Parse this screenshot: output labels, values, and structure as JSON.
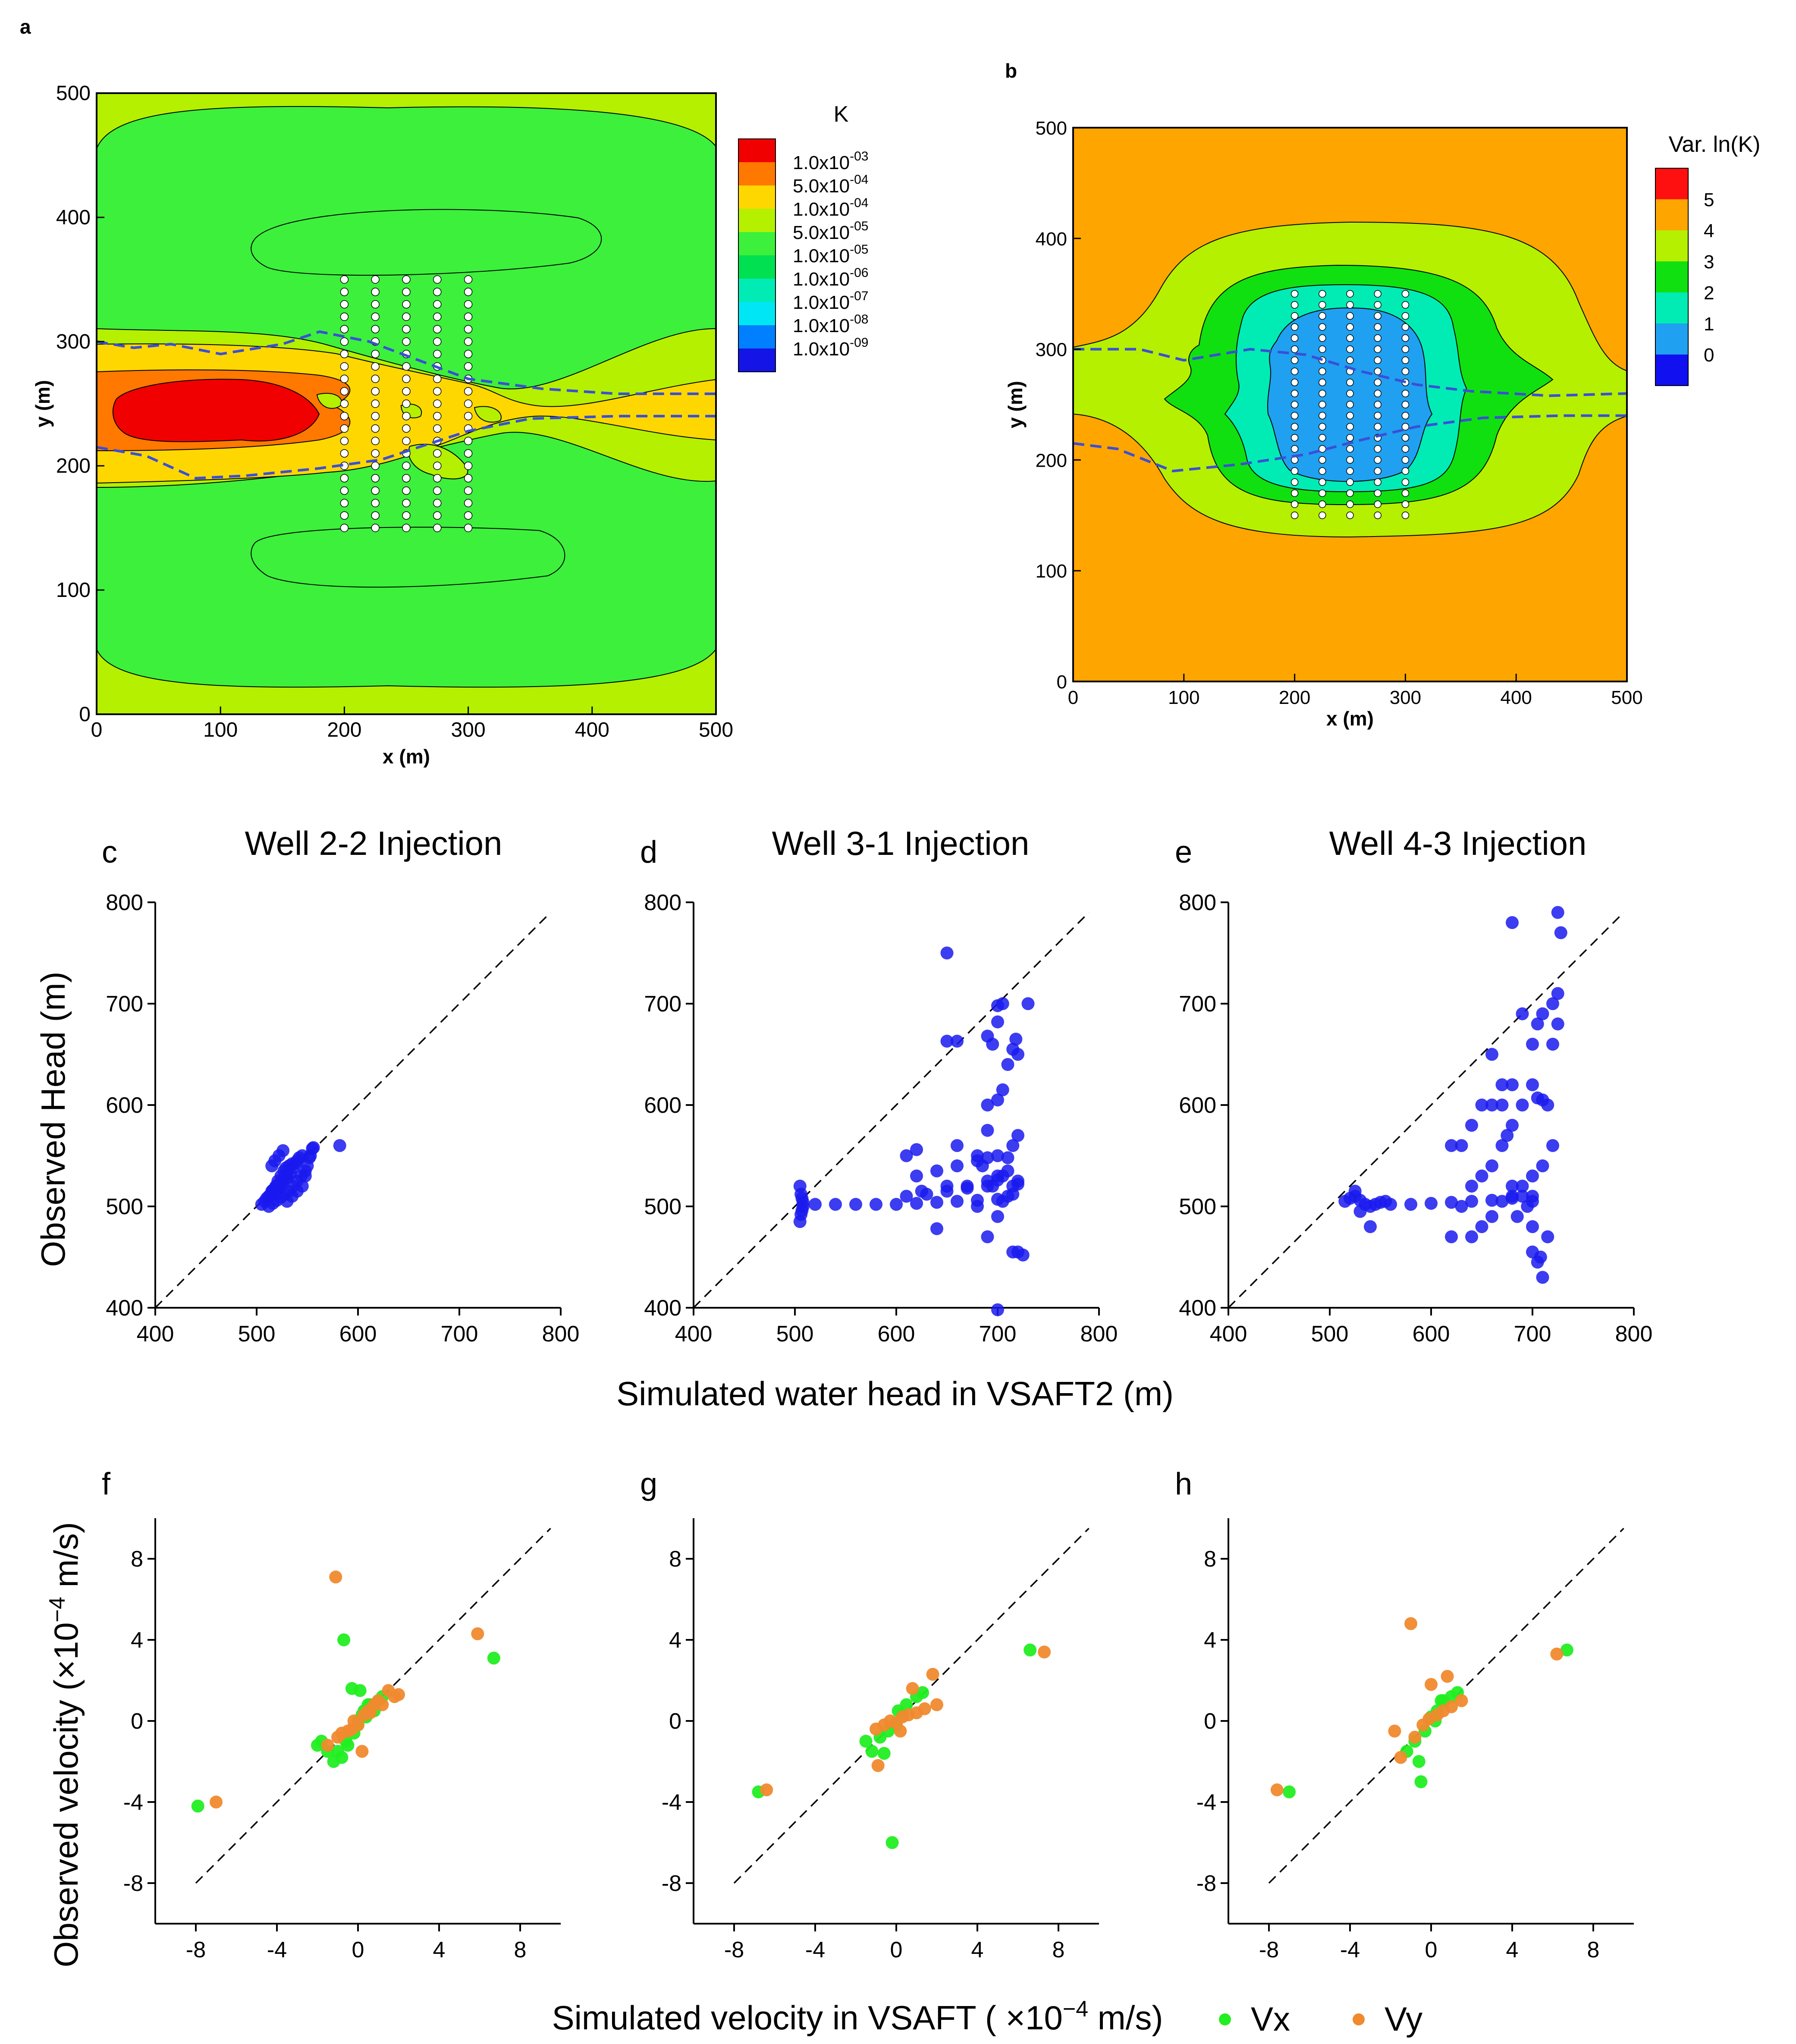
{
  "panel_letters": {
    "a": "a",
    "b": "b",
    "c": "c",
    "d": "d",
    "e": "e",
    "f": "f",
    "g": "g",
    "h": "h"
  },
  "panel_a": {
    "xlabel": "x (m)",
    "ylabel": "y (m)",
    "xticks": [
      "0",
      "100",
      "200",
      "300",
      "400",
      "500"
    ],
    "yticks": [
      "0",
      "100",
      "200",
      "300",
      "400",
      "500"
    ],
    "legend_title": "K",
    "legend_mantissas": [
      "1.0x10",
      "5.0x10",
      "1.0x10",
      "5.0x10",
      "1.0x10",
      "1.0x10",
      "1.0x10",
      "1.0x10",
      "1.0x10"
    ],
    "legend_exponents": [
      "-03",
      "-04",
      "-04",
      "-05",
      "-05",
      "-06",
      "-07",
      "-08",
      "-09"
    ],
    "legend_colors": [
      "#f00000",
      "#ff7800",
      "#ffd700",
      "#b4f000",
      "#3cf03c",
      "#00e050",
      "#00ecb4",
      "#00e6f5",
      "#0080ff",
      "#1414e6"
    ]
  },
  "panel_b": {
    "xlabel": "x (m)",
    "ylabel": "y (m)",
    "xticks": [
      "0",
      "100",
      "200",
      "300",
      "400",
      "500"
    ],
    "yticks": [
      "0",
      "100",
      "200",
      "300",
      "400",
      "500"
    ],
    "legend_title": "Var. ln(K)",
    "legend_labels": [
      "5",
      "4",
      "3",
      "2",
      "1",
      "0"
    ],
    "legend_colors": [
      "#ff1010",
      "#ffa500",
      "#b4f000",
      "#10e010",
      "#00ecb4",
      "#20a0f0",
      "#1010f0"
    ]
  },
  "head_panels": {
    "ylabel": "Observed Head (m)",
    "xlabel": "Simulated water head in VSAFT2 (m)",
    "ticks": [
      "400",
      "500",
      "600",
      "700",
      "800"
    ],
    "titles": [
      "Well 2-2 Injection",
      "Well 3-1 Injection",
      "Well 4-3 Injection"
    ],
    "point_color": "#1a1aee"
  },
  "velocity_panels": {
    "ylabel": "Observed velocity (×10",
    "ylabel_exp": "−4",
    "ylabel_unit": " m/s)",
    "xlabel": "Simulated velocity in VSAFT ( ×10",
    "xlabel_exp": "−4",
    "xlabel_unit": " m/s)",
    "xticks": [
      "-8",
      "-4",
      "0",
      "4",
      "8"
    ],
    "yticks": [
      "-8",
      "-4",
      "0",
      "4",
      "8"
    ],
    "legend": [
      {
        "label": "Vx",
        "color": "#22ee22"
      },
      {
        "label": "Vy",
        "color": "#f08a2e"
      }
    ]
  },
  "chart_data": [
    {
      "type": "heatmap",
      "panel": "a",
      "title": "K",
      "xlabel": "x (m)",
      "ylabel": "y (m)",
      "xlim": [
        0,
        500
      ],
      "ylim": [
        0,
        500
      ],
      "dashed_boundaries": [
        [
          [
            0,
            300
          ],
          [
            30,
            295
          ],
          [
            60,
            298
          ],
          [
            100,
            290
          ],
          [
            150,
            298
          ],
          [
            180,
            308
          ],
          [
            220,
            300
          ],
          [
            260,
            285
          ],
          [
            300,
            270
          ],
          [
            360,
            262
          ],
          [
            420,
            258
          ],
          [
            500,
            258
          ]
        ],
        [
          [
            0,
            215
          ],
          [
            40,
            208
          ],
          [
            80,
            190
          ],
          [
            120,
            192
          ],
          [
            180,
            198
          ],
          [
            230,
            205
          ],
          [
            260,
            215
          ],
          [
            300,
            228
          ],
          [
            350,
            238
          ],
          [
            420,
            240
          ],
          [
            500,
            240
          ]
        ]
      ],
      "wells": {
        "x": [
          200,
          225,
          250,
          275,
          300
        ],
        "y_range": [
          150,
          350
        ],
        "spacing": 10
      }
    },
    {
      "type": "heatmap",
      "panel": "b",
      "title": "Var. ln(K)",
      "xlabel": "x (m)",
      "ylabel": "y (m)",
      "xlim": [
        0,
        500
      ],
      "ylim": [
        0,
        500
      ],
      "dashed_boundaries": [
        [
          [
            0,
            300
          ],
          [
            60,
            300
          ],
          [
            100,
            290
          ],
          [
            160,
            300
          ],
          [
            210,
            295
          ],
          [
            260,
            280
          ],
          [
            310,
            268
          ],
          [
            360,
            262
          ],
          [
            430,
            258
          ],
          [
            500,
            260
          ]
        ],
        [
          [
            0,
            215
          ],
          [
            40,
            210
          ],
          [
            90,
            190
          ],
          [
            150,
            196
          ],
          [
            210,
            205
          ],
          [
            260,
            218
          ],
          [
            310,
            230
          ],
          [
            370,
            238
          ],
          [
            440,
            240
          ],
          [
            500,
            240
          ]
        ]
      ],
      "wells": {
        "x": [
          200,
          225,
          250,
          275,
          300
        ],
        "y_range": [
          150,
          350
        ],
        "spacing": 10
      }
    },
    {
      "type": "scatter",
      "panel": "c",
      "title": "Well 2-2 Injection",
      "xlabel": "Simulated water head in VSAFT2 (m)",
      "ylabel": "Observed Head (m)",
      "xlim": [
        400,
        800
      ],
      "ylim": [
        400,
        800
      ],
      "series": [
        {
          "name": "head",
          "x": [
            505,
            508,
            512,
            515,
            518,
            520,
            522,
            525,
            528,
            530,
            510,
            514,
            516,
            519,
            521,
            524,
            527,
            529,
            532,
            535,
            520,
            523,
            526,
            530,
            533,
            536,
            538,
            540,
            542,
            545,
            530,
            535,
            540,
            545,
            548,
            550,
            553,
            555,
            515,
            518,
            522,
            526,
            512,
            516,
            520,
            524,
            528,
            532,
            536,
            540,
            544,
            548,
            552,
            556,
            582
          ],
          "y": [
            502,
            505,
            510,
            515,
            518,
            520,
            522,
            525,
            530,
            532,
            508,
            512,
            516,
            520,
            525,
            530,
            535,
            538,
            540,
            542,
            512,
            518,
            524,
            528,
            532,
            538,
            542,
            545,
            548,
            550,
            505,
            510,
            515,
            520,
            530,
            540,
            550,
            557,
            540,
            545,
            550,
            555,
            500,
            503,
            506,
            509,
            512,
            515,
            520,
            525,
            530,
            535,
            548,
            558,
            560
          ]
        }
      ]
    },
    {
      "type": "scatter",
      "panel": "d",
      "title": "Well 3-1 Injection",
      "xlabel": "Simulated water head in VSAFT2 (m)",
      "ylabel": "Observed Head (m)",
      "xlim": [
        400,
        800
      ],
      "ylim": [
        400,
        800
      ],
      "series": [
        {
          "name": "head",
          "x": [
            505,
            506,
            507,
            508,
            508,
            507,
            506,
            505,
            520,
            540,
            560,
            580,
            600,
            620,
            640,
            660,
            680,
            700,
            610,
            630,
            650,
            670,
            690,
            720,
            620,
            640,
            660,
            680,
            700,
            710,
            625,
            650,
            690,
            700,
            715,
            720,
            690,
            700,
            705,
            710,
            715,
            720,
            718,
            705,
            695,
            700,
            690,
            680,
            670,
            715,
            720,
            725,
            730,
            650,
            700,
            610,
            620,
            660,
            685,
            690,
            695,
            700,
            705,
            710,
            715,
            640,
            700,
            690,
            680,
            705,
            710,
            715,
            720,
            650,
            700,
            660,
            690
          ],
          "y": [
            520,
            512,
            508,
            504,
            500,
            496,
            492,
            485,
            502,
            502,
            502,
            502,
            502,
            503,
            504,
            505,
            506,
            507,
            510,
            512,
            515,
            518,
            520,
            522,
            530,
            535,
            540,
            545,
            550,
            548,
            515,
            520,
            525,
            530,
            560,
            570,
            600,
            605,
            615,
            640,
            655,
            650,
            665,
            700,
            660,
            698,
            668,
            550,
            520,
            455,
            455,
            452,
            700,
            750,
            398,
            550,
            556,
            560,
            540,
            548,
            520,
            526,
            530,
            535,
            512,
            478,
            490,
            470,
            500,
            505,
            510,
            520,
            525,
            663,
            682,
            663,
            575
          ]
        }
      ]
    },
    {
      "type": "scatter",
      "panel": "e",
      "title": "Well 4-3 Injection",
      "xlabel": "Simulated water head in VSAFT2 (m)",
      "ylabel": "Observed Head (m)",
      "xlim": [
        400,
        800
      ],
      "ylim": [
        400,
        800
      ],
      "series": [
        {
          "name": "head",
          "x": [
            515,
            520,
            525,
            530,
            535,
            540,
            545,
            550,
            555,
            560,
            580,
            600,
            620,
            640,
            660,
            680,
            700,
            525,
            530,
            540,
            620,
            630,
            640,
            650,
            660,
            670,
            680,
            690,
            700,
            705,
            710,
            715,
            720,
            725,
            640,
            650,
            660,
            670,
            680,
            690,
            700,
            710,
            720,
            725,
            728,
            725,
            720,
            710,
            705,
            700,
            690,
            680,
            670,
            660,
            650,
            640,
            630,
            620,
            700,
            705,
            710,
            715,
            708,
            700,
            695,
            690,
            685,
            680,
            660,
            670,
            675,
            680,
            700
          ],
          "y": [
            505,
            508,
            510,
            506,
            502,
            500,
            502,
            504,
            505,
            502,
            502,
            503,
            504,
            505,
            506,
            508,
            510,
            515,
            495,
            480,
            470,
            500,
            520,
            530,
            540,
            560,
            580,
            600,
            620,
            607,
            605,
            600,
            660,
            680,
            470,
            480,
            490,
            505,
            510,
            520,
            530,
            540,
            560,
            790,
            770,
            710,
            700,
            690,
            680,
            660,
            690,
            620,
            620,
            600,
            600,
            580,
            560,
            560,
            455,
            445,
            430,
            470,
            450,
            480,
            500,
            510,
            490,
            780,
            650,
            600,
            570,
            520,
            505
          ]
        }
      ]
    },
    {
      "type": "scatter",
      "panel": "f",
      "xlabel": "Simulated velocity in VSAFT (×10^-4 m/s)",
      "ylabel": "Observed velocity (×10^-4 m/s)",
      "xlim": [
        -10,
        10
      ],
      "ylim": [
        -10,
        10
      ],
      "series": [
        {
          "name": "Vx",
          "x": [
            -7.9,
            6.7,
            -0.7,
            -1.5,
            -1.8,
            -1.2,
            -0.8,
            -0.5,
            -0.2,
            0.0,
            0.2,
            0.3,
            0.5,
            0.8,
            1.0,
            1.2,
            -0.3,
            -0.6,
            0.1,
            0.4,
            -1.0,
            -2.0,
            0.6,
            0.0
          ],
          "y": [
            -4.2,
            3.1,
            4.0,
            -1.5,
            -1.0,
            -2.0,
            -1.8,
            -1.2,
            -0.6,
            -0.2,
            0.3,
            0.5,
            0.8,
            0.5,
            1.0,
            1.2,
            1.6,
            -1.0,
            1.5,
            0.2,
            -1.5,
            -1.2,
            0.8,
            0.0
          ]
        },
        {
          "name": "Vy",
          "x": [
            -7.0,
            5.9,
            -1.1,
            -1.5,
            -1.0,
            -0.5,
            0.0,
            0.3,
            0.5,
            0.8,
            1.0,
            1.5,
            1.8,
            2.0,
            -0.3,
            0.2,
            -0.8,
            -0.2,
            0.6,
            1.2
          ],
          "y": [
            -4.0,
            4.3,
            7.1,
            -1.2,
            -0.8,
            -0.5,
            -0.2,
            0.3,
            0.5,
            0.8,
            1.0,
            1.5,
            1.2,
            1.3,
            -0.4,
            -1.5,
            -0.6,
            0.0,
            0.4,
            0.8
          ]
        }
      ]
    },
    {
      "type": "scatter",
      "panel": "g",
      "xlabel": "Simulated velocity in VSAFT (×10^-4 m/s)",
      "ylabel": "Observed velocity (×10^-4 m/s)",
      "xlim": [
        -10,
        10
      ],
      "ylim": [
        -10,
        10
      ],
      "series": [
        {
          "name": "Vx",
          "x": [
            -6.8,
            6.6,
            -0.2,
            -1.5,
            -1.2,
            -0.8,
            -0.4,
            0.0,
            0.3,
            0.5,
            1.0,
            1.3,
            -0.6,
            0.1
          ],
          "y": [
            -3.5,
            3.5,
            -6.0,
            -1.0,
            -1.5,
            -0.8,
            -0.5,
            -0.2,
            0.3,
            0.8,
            1.2,
            1.4,
            -1.6,
            0.5
          ]
        },
        {
          "name": "Vy",
          "x": [
            -6.4,
            7.3,
            -1.0,
            -0.6,
            -0.3,
            0.0,
            0.3,
            0.6,
            1.0,
            1.4,
            1.8,
            2.0,
            0.8,
            -0.9,
            0.2
          ],
          "y": [
            -3.4,
            3.4,
            -0.4,
            -0.2,
            0.0,
            -0.1,
            0.2,
            0.3,
            0.4,
            0.6,
            2.3,
            0.8,
            1.6,
            -2.2,
            -0.5
          ]
        }
      ]
    },
    {
      "type": "scatter",
      "panel": "h",
      "xlabel": "Simulated velocity in VSAFT (×10^-4 m/s)",
      "ylabel": "Observed velocity (×10^-4 m/s)",
      "xlim": [
        -10,
        10
      ],
      "ylim": [
        -10,
        10
      ],
      "series": [
        {
          "name": "Vx",
          "x": [
            -7.0,
            6.7,
            -0.5,
            -1.2,
            -0.8,
            -0.3,
            0.0,
            0.3,
            0.6,
            1.0,
            1.3,
            0.5,
            -0.6,
            0.2
          ],
          "y": [
            -3.5,
            3.5,
            -3.0,
            -1.5,
            -1.0,
            -0.5,
            0.2,
            0.5,
            1.0,
            1.2,
            1.4,
            1.0,
            -2.0,
            0.0
          ]
        },
        {
          "name": "Vy",
          "x": [
            -7.6,
            6.2,
            -1.0,
            -1.5,
            -0.8,
            -0.4,
            -0.1,
            0.3,
            0.6,
            1.0,
            1.5,
            -1.8,
            0.0,
            0.8
          ],
          "y": [
            -3.4,
            3.3,
            4.8,
            -1.8,
            -0.8,
            -0.2,
            0.1,
            0.3,
            0.5,
            0.7,
            1.0,
            -0.5,
            1.8,
            2.2
          ]
        }
      ]
    }
  ]
}
